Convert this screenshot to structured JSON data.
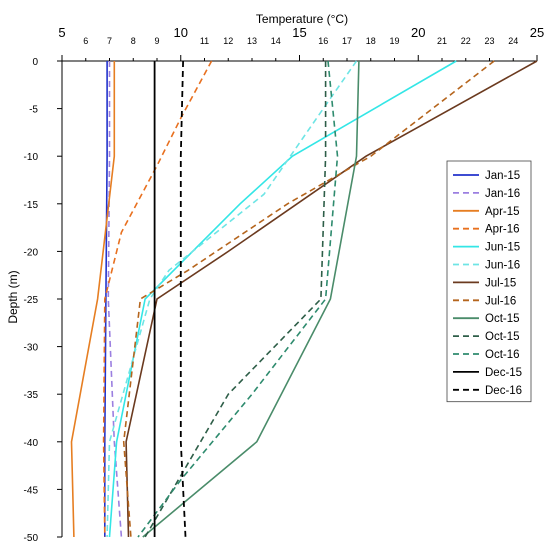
{
  "chart_data": {
    "type": "line",
    "orientation": "depth-profile",
    "title": "",
    "xlabel": "Temperature (°C)",
    "ylabel": "Depth (m)",
    "x_axis_position": "top",
    "xlim": [
      5,
      25
    ],
    "ylim": [
      0,
      -50
    ],
    "x_ticks_major": [
      5,
      10,
      15,
      20,
      25
    ],
    "x_ticks_minor": [
      6,
      7,
      8,
      9,
      11,
      12,
      13,
      14,
      16,
      17,
      18,
      19,
      21,
      22,
      23,
      24
    ],
    "y_ticks": [
      0,
      -5,
      -10,
      -15,
      -20,
      -25,
      -30,
      -35,
      -40,
      -45,
      -50
    ],
    "grid": false,
    "legend_placement": "right",
    "series": [
      {
        "name": "Jan-15",
        "color": "#2233cc",
        "dash": "solid",
        "points": [
          [
            6.9,
            0
          ],
          [
            6.9,
            -10
          ],
          [
            6.85,
            -25
          ],
          [
            6.8,
            -40
          ],
          [
            6.8,
            -50
          ]
        ]
      },
      {
        "name": "Jan-16",
        "color": "#9b7fe0",
        "dash": "dashed",
        "points": [
          [
            7.0,
            0
          ],
          [
            7.0,
            -10
          ],
          [
            6.95,
            -25
          ],
          [
            7.2,
            -40
          ],
          [
            7.5,
            -50
          ]
        ]
      },
      {
        "name": "Apr-15",
        "color": "#e67e22",
        "dash": "solid",
        "points": [
          [
            7.2,
            0
          ],
          [
            7.2,
            -10
          ],
          [
            6.5,
            -25
          ],
          [
            5.4,
            -40
          ],
          [
            5.5,
            -50
          ]
        ]
      },
      {
        "name": "Apr-16",
        "color": "#e8701f",
        "dash": "dashed",
        "points": [
          [
            11.3,
            0
          ],
          [
            10.0,
            -6
          ],
          [
            9.0,
            -11
          ],
          [
            7.5,
            -18
          ],
          [
            6.8,
            -25
          ],
          [
            6.75,
            -40
          ],
          [
            6.8,
            -50
          ]
        ]
      },
      {
        "name": "Jun-15",
        "color": "#33e6e6",
        "dash": "solid",
        "points": [
          [
            21.6,
            0
          ],
          [
            14.7,
            -10
          ],
          [
            12.5,
            -15
          ],
          [
            8.5,
            -25
          ],
          [
            7.3,
            -40
          ],
          [
            7.0,
            -50
          ]
        ]
      },
      {
        "name": "Jun-16",
        "color": "#6ee5e5",
        "dash": "dashed",
        "points": [
          [
            17.4,
            0
          ],
          [
            16.0,
            -5
          ],
          [
            13.5,
            -14
          ],
          [
            9.5,
            -22
          ],
          [
            8.7,
            -25
          ],
          [
            7.0,
            -40
          ],
          [
            6.9,
            -50
          ]
        ]
      },
      {
        "name": "Jul-15",
        "color": "#6b3a1f",
        "dash": "solid",
        "points": [
          [
            25.0,
            0
          ],
          [
            17.8,
            -10
          ],
          [
            12.0,
            -20
          ],
          [
            9.0,
            -25
          ],
          [
            7.7,
            -40
          ],
          [
            7.8,
            -50
          ]
        ]
      },
      {
        "name": "Jul-16",
        "color": "#b5651d",
        "dash": "dashed",
        "points": [
          [
            23.2,
            0
          ],
          [
            18.0,
            -10
          ],
          [
            14.5,
            -15
          ],
          [
            10.3,
            -22
          ],
          [
            8.3,
            -25
          ],
          [
            7.6,
            -40
          ],
          [
            7.9,
            -50
          ]
        ]
      },
      {
        "name": "Oct-15",
        "color": "#4a8c6a",
        "dash": "solid",
        "points": [
          [
            17.5,
            0
          ],
          [
            17.4,
            -10
          ],
          [
            16.3,
            -25
          ],
          [
            13.2,
            -40
          ],
          [
            8.4,
            -50
          ]
        ]
      },
      {
        "name": "Oct-15",
        "color": "#2e5e48",
        "dash": "dashed",
        "points": [
          [
            16.1,
            0
          ],
          [
            16.1,
            -10
          ],
          [
            15.9,
            -25
          ],
          [
            12.0,
            -35
          ],
          [
            8.5,
            -50
          ]
        ]
      },
      {
        "name": "Oct-16",
        "color": "#2e8b6e",
        "dash": "dashed",
        "points": [
          [
            16.2,
            0
          ],
          [
            16.6,
            -10
          ],
          [
            16.1,
            -25
          ],
          [
            13.0,
            -35
          ],
          [
            10.0,
            -44
          ],
          [
            8.2,
            -50
          ]
        ]
      },
      {
        "name": "Dec-15",
        "color": "#000000",
        "dash": "solid",
        "points": [
          [
            8.9,
            0
          ],
          [
            8.9,
            -10
          ],
          [
            8.9,
            -25
          ],
          [
            8.9,
            -40
          ],
          [
            8.9,
            -50
          ]
        ]
      },
      {
        "name": "Dec-16",
        "color": "#000000",
        "dash": "dashed",
        "points": [
          [
            10.1,
            0
          ],
          [
            10.0,
            -10
          ],
          [
            10.0,
            -25
          ],
          [
            10.0,
            -40
          ],
          [
            10.2,
            -50
          ]
        ]
      }
    ]
  }
}
